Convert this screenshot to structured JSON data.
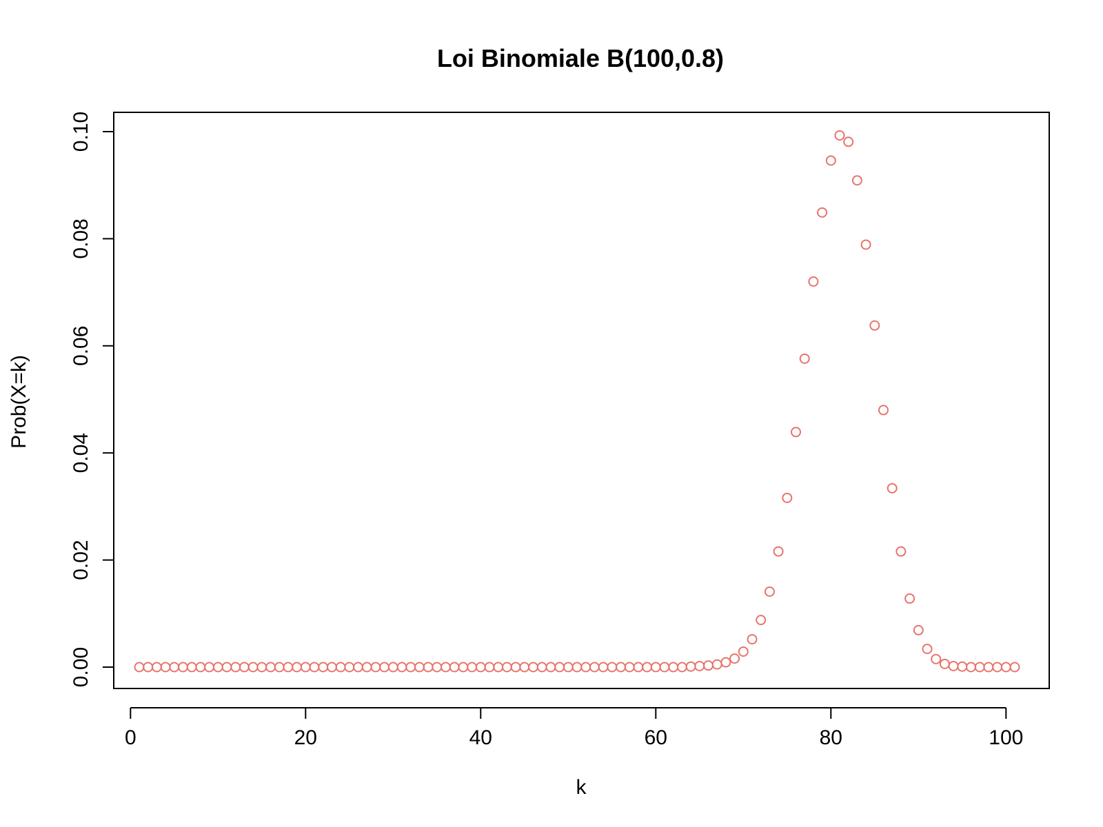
{
  "chart_data": {
    "type": "scatter",
    "title": "Loi Binomiale B(100,0.8)",
    "xlabel": "k",
    "ylabel": "Prob(X=k)",
    "xlim": [
      1,
      101
    ],
    "ylim": [
      0,
      0.1
    ],
    "x_ticks": [
      "0",
      "20",
      "40",
      "60",
      "80",
      "100"
    ],
    "y_ticks": [
      "0.00",
      "0.02",
      "0.04",
      "0.06",
      "0.08",
      "0.10"
    ],
    "marker": "open-circle",
    "point_color": "#e8736c",
    "grid": false,
    "legend": "none",
    "series": [
      {
        "x": [
          1,
          2,
          3,
          4,
          5,
          6,
          7,
          8,
          9,
          10,
          11,
          12,
          13,
          14,
          15,
          16,
          17,
          18,
          19,
          20,
          21,
          22,
          23,
          24,
          25,
          26,
          27,
          28,
          29,
          30,
          31,
          32,
          33,
          34,
          35,
          36,
          37,
          38,
          39,
          40,
          41,
          42,
          43,
          44,
          45,
          46,
          47,
          48,
          49,
          50,
          51,
          52,
          53,
          54,
          55,
          56,
          57,
          58,
          59,
          60,
          61,
          62,
          63,
          64,
          65,
          66,
          67,
          68,
          69,
          70,
          71,
          72,
          73,
          74,
          75,
          76,
          77,
          78,
          79,
          80,
          81,
          82,
          83,
          84,
          85,
          86,
          87,
          88,
          89,
          90,
          91,
          92,
          93,
          94,
          95,
          96,
          97,
          98,
          99,
          100,
          101
        ],
        "y": [
          0,
          0,
          0,
          0,
          0,
          0,
          0,
          0,
          0,
          0,
          0,
          0,
          0,
          0,
          0,
          0,
          0,
          0,
          0,
          0,
          0,
          0,
          0,
          0,
          0,
          0,
          0,
          0,
          0,
          0,
          0,
          0,
          0,
          0,
          0,
          0,
          0,
          0,
          0,
          0,
          0,
          0,
          0,
          0,
          0,
          0,
          0,
          0,
          0,
          0,
          0,
          0,
          0,
          0,
          0,
          0,
          0,
          0,
          0,
          0,
          0,
          0,
          0,
          0.0001,
          0.0002,
          0.0003,
          0.0005,
          0.0009,
          0.0016,
          0.0029,
          0.0052,
          0.0088,
          0.0141,
          0.0216,
          0.0316,
          0.0439,
          0.0576,
          0.072,
          0.0849,
          0.0946,
          0.0993,
          0.0981,
          0.0909,
          0.0789,
          0.0638,
          0.048,
          0.0334,
          0.0216,
          0.0128,
          0.0069,
          0.0034,
          0.0015,
          0.0006,
          0.0002,
          0.0001,
          0,
          0,
          0,
          0,
          0,
          0
        ]
      }
    ]
  }
}
